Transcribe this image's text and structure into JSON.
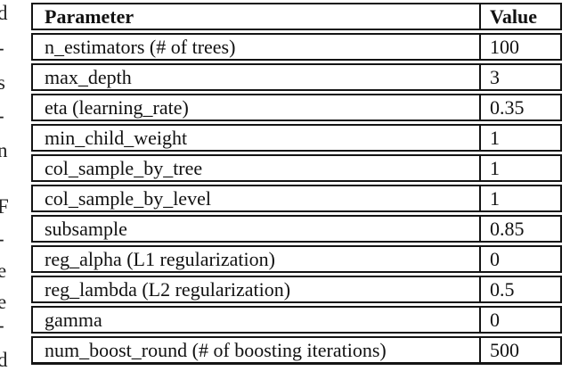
{
  "margin_fragments": [
    "d",
    "-",
    "s",
    "-",
    "n",
    "F",
    "-",
    "e",
    "e",
    "-",
    "d"
  ],
  "table": {
    "headers": {
      "param": "Parameter",
      "value": "Value"
    },
    "rows": [
      {
        "param": "n_estimators (# of trees)",
        "value": "100"
      },
      {
        "param": "max_depth",
        "value": "3"
      },
      {
        "param": "eta (learning_rate)",
        "value": "0.35"
      },
      {
        "param": "min_child_weight",
        "value": "1"
      },
      {
        "param": "col_sample_by_tree",
        "value": "1"
      },
      {
        "param": "col_sample_by_level",
        "value": "1"
      },
      {
        "param": "subsample",
        "value": "0.85"
      },
      {
        "param": "reg_alpha (L1 regularization)",
        "value": "0"
      },
      {
        "param": "reg_lambda (L2 regularization)",
        "value": "0.5"
      },
      {
        "param": "gamma",
        "value": "0"
      },
      {
        "param": "num_boost_round (# of boosting iterations)",
        "value": "500"
      }
    ]
  }
}
